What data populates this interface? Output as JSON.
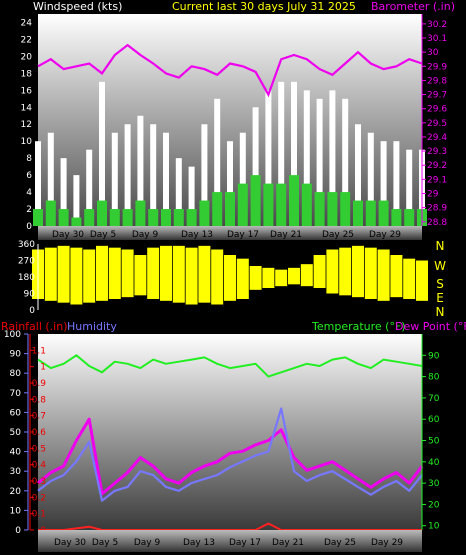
{
  "header": {
    "left": "Windspeed (kts)",
    "center": "Current last 30 days July 31 2025",
    "right": "Barometer (.in)"
  },
  "colors": {
    "wind_gust": "#ffffff",
    "wind_avg": "#33cc33",
    "barometer": "#ee00ee",
    "direction": "#ffff00",
    "rain": "#ff2020",
    "humidity": "#7777ff",
    "temperature": "#22ee22",
    "dewpoint": "#ee00ee",
    "left_axis": "#ee0000",
    "right_axis": "#ee00ee"
  },
  "x_ticks": [
    "Day 30",
    "Day 5",
    "Day 9",
    "Day 13",
    "Day 17",
    "Day 21",
    "Day 25",
    "Day 29"
  ],
  "chart_data": [
    {
      "type": "area",
      "title": "Current last 30 days July 31 2025",
      "ylabel": "Windspeed (kts)",
      "ylabel_right": "Barometer (.in)",
      "ylim": [
        0,
        25
      ],
      "yticks": [
        0,
        2,
        4,
        6,
        8,
        10,
        12,
        14,
        16,
        18,
        20,
        22,
        24
      ],
      "ylim_right": [
        28.77,
        30.27
      ],
      "yticks_right": [
        "28.8",
        "28.9",
        "29",
        "29.1",
        "29.2",
        "29.3",
        "29.4",
        "29.5",
        "29.6",
        "29.7",
        "29.8",
        "29.9",
        "30",
        "30.1",
        "30.2"
      ],
      "x_days": [
        0,
        1,
        2,
        3,
        4,
        5,
        6,
        7,
        8,
        9,
        10,
        11,
        12,
        13,
        14,
        15,
        16,
        17,
        18,
        19,
        20,
        21,
        22,
        23,
        24,
        25,
        26,
        27,
        28,
        29,
        30
      ],
      "series": [
        {
          "name": "Windspeed gust",
          "values": [
            10,
            11,
            8,
            6,
            9,
            17,
            11,
            12,
            13,
            12,
            11,
            8,
            7,
            12,
            15,
            10,
            11,
            14,
            16,
            17,
            17,
            16,
            15,
            16,
            15,
            12,
            11,
            10,
            10,
            9,
            9
          ]
        },
        {
          "name": "Windspeed average",
          "values": [
            2,
            3,
            2,
            1,
            2,
            3,
            2,
            2,
            3,
            2,
            2,
            2,
            2,
            3,
            4,
            4,
            5,
            6,
            5,
            5,
            6,
            5,
            4,
            4,
            4,
            3,
            3,
            3,
            2,
            2,
            2
          ]
        },
        {
          "name": "Barometer",
          "values": [
            29.9,
            29.95,
            29.88,
            29.9,
            29.92,
            29.85,
            29.98,
            30.05,
            29.98,
            29.92,
            29.85,
            29.82,
            29.9,
            29.88,
            29.84,
            29.92,
            29.9,
            29.86,
            29.7,
            29.95,
            29.98,
            29.95,
            29.88,
            29.84,
            29.92,
            30.0,
            29.92,
            29.88,
            29.9,
            29.95,
            29.92
          ]
        }
      ]
    },
    {
      "type": "area",
      "title": "",
      "ylabel": "",
      "ylim": [
        0,
        360
      ],
      "yticks": [
        0,
        90,
        180,
        270,
        360
      ],
      "compass_labels": [
        "N",
        "W",
        "S",
        "E",
        "N"
      ],
      "x_days": [
        0,
        1,
        2,
        3,
        4,
        5,
        6,
        7,
        8,
        9,
        10,
        11,
        12,
        13,
        14,
        15,
        16,
        17,
        18,
        19,
        20,
        21,
        22,
        23,
        24,
        25,
        26,
        27,
        28,
        29,
        30
      ],
      "series": [
        {
          "name": "Wind direction low",
          "values": [
            60,
            50,
            40,
            30,
            40,
            50,
            60,
            70,
            80,
            60,
            50,
            40,
            30,
            40,
            30,
            50,
            60,
            110,
            120,
            130,
            140,
            130,
            120,
            90,
            80,
            70,
            60,
            50,
            70,
            60,
            50
          ]
        },
        {
          "name": "Wind direction high",
          "values": [
            330,
            340,
            350,
            340,
            330,
            350,
            340,
            330,
            300,
            340,
            350,
            350,
            340,
            350,
            330,
            300,
            280,
            240,
            230,
            220,
            230,
            250,
            300,
            330,
            340,
            350,
            340,
            330,
            300,
            280,
            270
          ]
        }
      ]
    },
    {
      "type": "line",
      "title": "",
      "ylabel": "Rainfall (.in)",
      "ylabel_humidity": "Humidity",
      "ylabel_right": "Temperature (°F)",
      "ylabel_right2": "Dew Point (°F)",
      "ylim": [
        0,
        1.2
      ],
      "yticks": [
        0,
        0.1,
        0.2,
        0.3,
        0.4,
        0.5,
        0.6,
        0.7,
        0.8,
        0.9,
        1,
        1.1
      ],
      "ylim_humidity": [
        0,
        100
      ],
      "yticks_humidity": [
        0,
        10,
        20,
        30,
        40,
        50,
        60,
        70,
        80,
        90,
        100
      ],
      "ylim_right": [
        8,
        100
      ],
      "yticks_right": [
        10,
        20,
        30,
        40,
        50,
        60,
        70,
        80,
        90
      ],
      "x_days": [
        0,
        1,
        2,
        3,
        4,
        5,
        6,
        7,
        8,
        9,
        10,
        11,
        12,
        13,
        14,
        15,
        16,
        17,
        18,
        19,
        20,
        21,
        22,
        23,
        24,
        25,
        26,
        27,
        28,
        29,
        30
      ],
      "series": [
        {
          "name": "Temperature",
          "values": [
            88,
            84,
            86,
            90,
            85,
            82,
            87,
            86,
            84,
            88,
            86,
            87,
            88,
            89,
            86,
            84,
            85,
            86,
            80,
            82,
            84,
            86,
            85,
            88,
            89,
            86,
            84,
            88,
            87,
            86,
            85
          ]
        },
        {
          "name": "Dew Point",
          "values": [
            30,
            35,
            38,
            50,
            60,
            25,
            30,
            35,
            42,
            38,
            32,
            30,
            35,
            38,
            40,
            44,
            45,
            48,
            50,
            55,
            42,
            36,
            38,
            40,
            36,
            32,
            28,
            32,
            35,
            30,
            38
          ]
        },
        {
          "name": "Humidity",
          "values": [
            20,
            25,
            28,
            35,
            45,
            15,
            20,
            22,
            30,
            28,
            22,
            20,
            24,
            26,
            28,
            32,
            35,
            38,
            40,
            62,
            30,
            25,
            28,
            30,
            26,
            22,
            18,
            22,
            25,
            20,
            28
          ]
        },
        {
          "name": "Rainfall",
          "values": [
            0,
            0,
            0,
            0.01,
            0.02,
            0,
            0,
            0,
            0,
            0,
            0,
            0,
            0,
            0,
            0,
            0,
            0,
            0,
            0.04,
            0,
            0,
            0,
            0,
            0,
            0,
            0,
            0,
            0,
            0,
            0,
            0
          ]
        }
      ]
    }
  ]
}
